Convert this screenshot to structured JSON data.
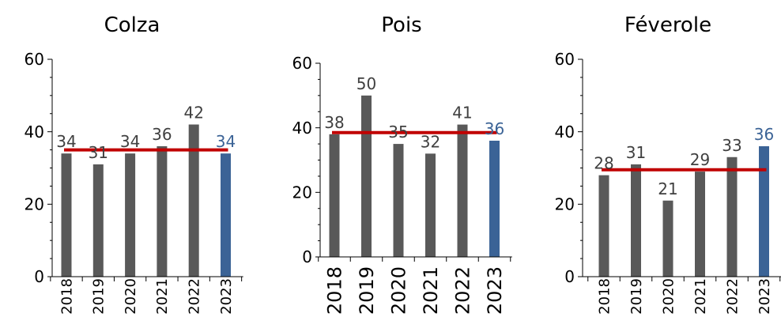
{
  "colors": {
    "bar": "#595959",
    "highlight_bar": "#3b6396",
    "mean_line": "#c00000",
    "label": "#404040",
    "highlight_label": "#3b6396",
    "axis": "#000000"
  },
  "chart_data": [
    {
      "type": "bar",
      "title": "Colza",
      "categories": [
        "2018",
        "2019",
        "2020",
        "2021",
        "2022",
        "2023"
      ],
      "values": [
        34,
        31,
        34,
        36,
        42,
        34
      ],
      "value_labels": [
        "34",
        "31",
        "34",
        "36",
        "42",
        "34"
      ],
      "highlight_index": 5,
      "mean_line": 35,
      "ylim": [
        0,
        60
      ],
      "yticks": [
        "0",
        "20",
        "40",
        "60"
      ],
      "grid": false,
      "xlabel": "",
      "ylabel": ""
    },
    {
      "type": "bar",
      "title": "Pois",
      "categories": [
        "2018",
        "2019",
        "2020",
        "2021",
        "2022",
        "2023"
      ],
      "values": [
        38,
        50,
        35,
        32,
        41,
        36
      ],
      "value_labels": [
        "38",
        "50",
        "35",
        "32",
        "41",
        "36"
      ],
      "highlight_index": 5,
      "mean_line": 38.5,
      "ylim": [
        0,
        60
      ],
      "yticks": [
        "0",
        "20",
        "40",
        "60"
      ],
      "grid": false,
      "xlabel": "",
      "ylabel": ""
    },
    {
      "type": "bar",
      "title": "Féverole",
      "categories": [
        "2018",
        "2019",
        "2020",
        "2021",
        "2022",
        "2023"
      ],
      "values": [
        28,
        31,
        21,
        29,
        33,
        36
      ],
      "value_labels": [
        "28",
        "31",
        "21",
        "29",
        "33",
        "36"
      ],
      "highlight_index": 5,
      "mean_line": 29.5,
      "ylim": [
        0,
        60
      ],
      "yticks": [
        "0",
        "20",
        "40",
        "60"
      ],
      "grid": false,
      "xlabel": "",
      "ylabel": ""
    }
  ]
}
